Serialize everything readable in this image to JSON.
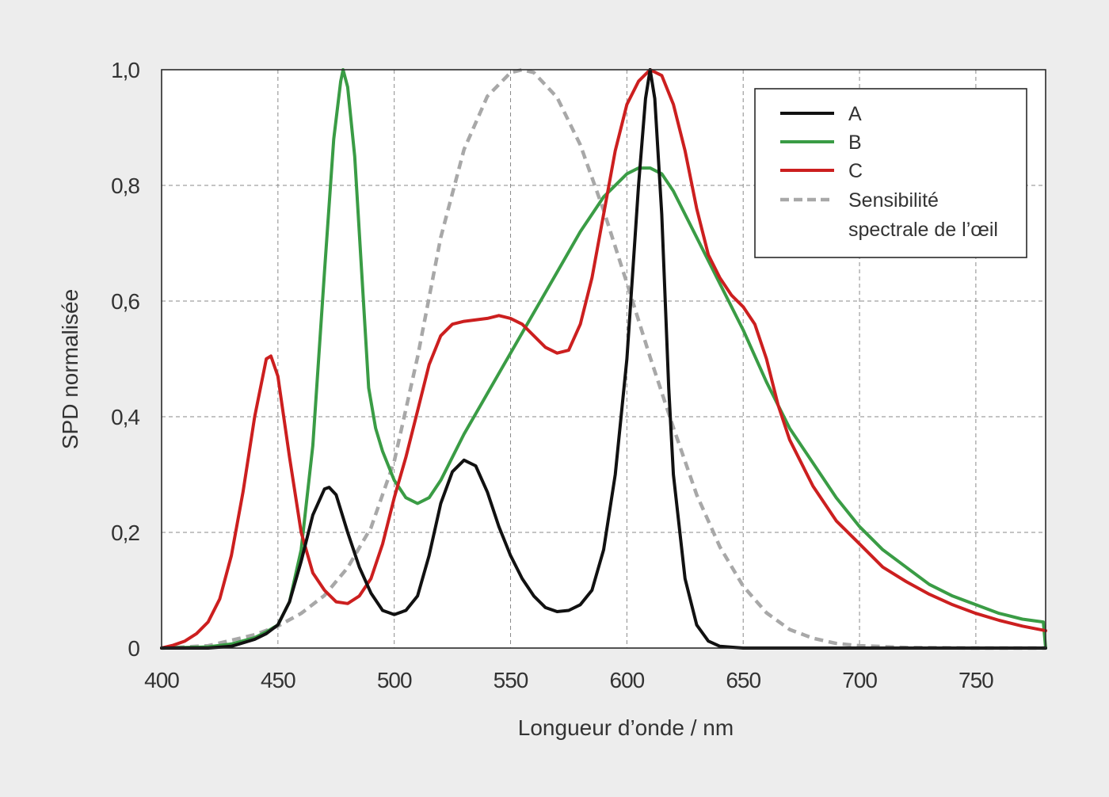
{
  "chart_data": {
    "type": "line",
    "xlabel": "Longueur d’onde / nm",
    "ylabel": "SPD normalisée",
    "xlim": [
      400,
      780
    ],
    "ylim": [
      0,
      1.0
    ],
    "x_ticks": [
      400,
      450,
      500,
      550,
      600,
      650,
      700,
      750
    ],
    "x_tick_labels": [
      "400",
      "450",
      "500",
      "550",
      "600",
      "650",
      "700",
      "750"
    ],
    "y_ticks": [
      0,
      0.2,
      0.4,
      0.6,
      0.8,
      1.0
    ],
    "y_tick_labels": [
      "0",
      "0,2",
      "0,4",
      "0,6",
      "0,8",
      "1,0"
    ],
    "grid": true,
    "legend_position": "top-right",
    "series": [
      {
        "name": "A",
        "color": "#111111",
        "dashed": false,
        "points": [
          [
            400,
            0
          ],
          [
            420,
            0
          ],
          [
            430,
            0.003
          ],
          [
            440,
            0.015
          ],
          [
            445,
            0.025
          ],
          [
            450,
            0.04
          ],
          [
            455,
            0.08
          ],
          [
            460,
            0.15
          ],
          [
            465,
            0.23
          ],
          [
            470,
            0.275
          ],
          [
            472,
            0.278
          ],
          [
            475,
            0.265
          ],
          [
            480,
            0.2
          ],
          [
            485,
            0.14
          ],
          [
            490,
            0.095
          ],
          [
            495,
            0.065
          ],
          [
            500,
            0.058
          ],
          [
            505,
            0.065
          ],
          [
            510,
            0.09
          ],
          [
            515,
            0.16
          ],
          [
            520,
            0.25
          ],
          [
            525,
            0.305
          ],
          [
            530,
            0.325
          ],
          [
            535,
            0.315
          ],
          [
            540,
            0.27
          ],
          [
            545,
            0.21
          ],
          [
            550,
            0.16
          ],
          [
            555,
            0.12
          ],
          [
            560,
            0.09
          ],
          [
            565,
            0.07
          ],
          [
            570,
            0.063
          ],
          [
            575,
            0.065
          ],
          [
            580,
            0.075
          ],
          [
            585,
            0.1
          ],
          [
            590,
            0.17
          ],
          [
            595,
            0.3
          ],
          [
            600,
            0.5
          ],
          [
            605,
            0.8
          ],
          [
            608,
            0.95
          ],
          [
            610,
            1.0
          ],
          [
            612,
            0.95
          ],
          [
            615,
            0.75
          ],
          [
            618,
            0.45
          ],
          [
            620,
            0.3
          ],
          [
            625,
            0.12
          ],
          [
            630,
            0.04
          ],
          [
            635,
            0.012
          ],
          [
            640,
            0.003
          ],
          [
            650,
            0
          ],
          [
            700,
            0
          ],
          [
            780,
            0
          ]
        ]
      },
      {
        "name": "B",
        "color": "#3a9c45",
        "dashed": false,
        "points": [
          [
            400,
            0
          ],
          [
            420,
            0.002
          ],
          [
            430,
            0.007
          ],
          [
            440,
            0.018
          ],
          [
            445,
            0.028
          ],
          [
            450,
            0.04
          ],
          [
            455,
            0.08
          ],
          [
            460,
            0.17
          ],
          [
            465,
            0.35
          ],
          [
            470,
            0.65
          ],
          [
            474,
            0.88
          ],
          [
            477,
            0.98
          ],
          [
            478,
            1.0
          ],
          [
            480,
            0.97
          ],
          [
            483,
            0.85
          ],
          [
            486,
            0.65
          ],
          [
            489,
            0.45
          ],
          [
            492,
            0.38
          ],
          [
            495,
            0.34
          ],
          [
            500,
            0.29
          ],
          [
            505,
            0.26
          ],
          [
            510,
            0.25
          ],
          [
            515,
            0.26
          ],
          [
            520,
            0.29
          ],
          [
            530,
            0.37
          ],
          [
            540,
            0.44
          ],
          [
            550,
            0.51
          ],
          [
            560,
            0.58
          ],
          [
            570,
            0.65
          ],
          [
            580,
            0.72
          ],
          [
            590,
            0.78
          ],
          [
            600,
            0.82
          ],
          [
            605,
            0.83
          ],
          [
            610,
            0.83
          ],
          [
            615,
            0.82
          ],
          [
            620,
            0.79
          ],
          [
            630,
            0.71
          ],
          [
            640,
            0.63
          ],
          [
            650,
            0.55
          ],
          [
            660,
            0.46
          ],
          [
            670,
            0.38
          ],
          [
            680,
            0.32
          ],
          [
            690,
            0.26
          ],
          [
            700,
            0.21
          ],
          [
            710,
            0.17
          ],
          [
            720,
            0.14
          ],
          [
            730,
            0.11
          ],
          [
            740,
            0.09
          ],
          [
            750,
            0.075
          ],
          [
            760,
            0.06
          ],
          [
            770,
            0.05
          ],
          [
            779,
            0.045
          ],
          [
            780,
            0.0
          ]
        ]
      },
      {
        "name": "C",
        "color": "#cc1f1f",
        "dashed": false,
        "points": [
          [
            400,
            0
          ],
          [
            405,
            0.005
          ],
          [
            410,
            0.012
          ],
          [
            415,
            0.025
          ],
          [
            420,
            0.045
          ],
          [
            425,
            0.085
          ],
          [
            430,
            0.16
          ],
          [
            435,
            0.27
          ],
          [
            440,
            0.4
          ],
          [
            445,
            0.5
          ],
          [
            447,
            0.505
          ],
          [
            450,
            0.47
          ],
          [
            455,
            0.33
          ],
          [
            460,
            0.2
          ],
          [
            465,
            0.13
          ],
          [
            470,
            0.1
          ],
          [
            475,
            0.08
          ],
          [
            480,
            0.077
          ],
          [
            485,
            0.09
          ],
          [
            490,
            0.12
          ],
          [
            495,
            0.18
          ],
          [
            500,
            0.26
          ],
          [
            505,
            0.33
          ],
          [
            510,
            0.41
          ],
          [
            515,
            0.49
          ],
          [
            520,
            0.54
          ],
          [
            525,
            0.56
          ],
          [
            530,
            0.565
          ],
          [
            540,
            0.57
          ],
          [
            545,
            0.575
          ],
          [
            550,
            0.57
          ],
          [
            555,
            0.56
          ],
          [
            560,
            0.54
          ],
          [
            565,
            0.52
          ],
          [
            570,
            0.51
          ],
          [
            575,
            0.515
          ],
          [
            580,
            0.56
          ],
          [
            585,
            0.64
          ],
          [
            590,
            0.75
          ],
          [
            595,
            0.86
          ],
          [
            600,
            0.94
          ],
          [
            605,
            0.98
          ],
          [
            610,
            1.0
          ],
          [
            615,
            0.99
          ],
          [
            620,
            0.94
          ],
          [
            625,
            0.86
          ],
          [
            630,
            0.76
          ],
          [
            635,
            0.68
          ],
          [
            640,
            0.64
          ],
          [
            645,
            0.61
          ],
          [
            650,
            0.59
          ],
          [
            655,
            0.56
          ],
          [
            660,
            0.5
          ],
          [
            665,
            0.42
          ],
          [
            670,
            0.36
          ],
          [
            680,
            0.28
          ],
          [
            690,
            0.22
          ],
          [
            700,
            0.18
          ],
          [
            710,
            0.14
          ],
          [
            720,
            0.115
          ],
          [
            730,
            0.093
          ],
          [
            740,
            0.075
          ],
          [
            750,
            0.06
          ],
          [
            760,
            0.048
          ],
          [
            770,
            0.038
          ],
          [
            780,
            0.03
          ]
        ]
      },
      {
        "name": "Sensibilité spectrale de l’œil",
        "legend_lines": [
          "Sensibilité",
          "spectrale de l’œil"
        ],
        "color": "#a8a8a8",
        "dashed": true,
        "points": [
          [
            400,
            0
          ],
          [
            420,
            0.004
          ],
          [
            440,
            0.023
          ],
          [
            450,
            0.038
          ],
          [
            460,
            0.06
          ],
          [
            470,
            0.091
          ],
          [
            480,
            0.139
          ],
          [
            490,
            0.208
          ],
          [
            500,
            0.323
          ],
          [
            510,
            0.503
          ],
          [
            520,
            0.71
          ],
          [
            530,
            0.862
          ],
          [
            540,
            0.954
          ],
          [
            550,
            0.995
          ],
          [
            555,
            1.0
          ],
          [
            560,
            0.995
          ],
          [
            570,
            0.952
          ],
          [
            580,
            0.87
          ],
          [
            590,
            0.757
          ],
          [
            600,
            0.631
          ],
          [
            610,
            0.503
          ],
          [
            620,
            0.381
          ],
          [
            630,
            0.265
          ],
          [
            640,
            0.175
          ],
          [
            650,
            0.107
          ],
          [
            660,
            0.061
          ],
          [
            670,
            0.032
          ],
          [
            680,
            0.017
          ],
          [
            690,
            0.008
          ],
          [
            700,
            0.004
          ],
          [
            720,
            0.001
          ],
          [
            750,
            0
          ],
          [
            780,
            0
          ]
        ]
      }
    ]
  }
}
